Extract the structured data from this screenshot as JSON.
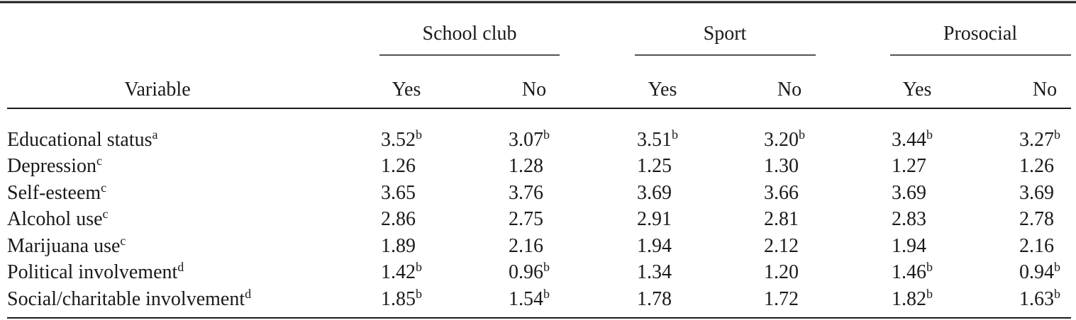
{
  "table": {
    "groups": [
      "School club",
      "Sport",
      "Prosocial"
    ],
    "variable_header": "Variable",
    "subheaders": [
      "Yes",
      "No",
      "Yes",
      "No",
      "Yes",
      "No"
    ],
    "rows": [
      {
        "label": "Educational status",
        "label_sup": "a",
        "cells": [
          {
            "text": "3.52",
            "sup": "b"
          },
          {
            "text": "3.07",
            "sup": "b"
          },
          {
            "text": "3.51",
            "sup": "b"
          },
          {
            "text": "3.20",
            "sup": "b"
          },
          {
            "text": "3.44",
            "sup": "b"
          },
          {
            "text": "3.27",
            "sup": "b"
          }
        ]
      },
      {
        "label": "Depression",
        "label_sup": "c",
        "cells": [
          {
            "text": "1.26"
          },
          {
            "text": "1.28"
          },
          {
            "text": "1.25"
          },
          {
            "text": "1.30"
          },
          {
            "text": "1.27"
          },
          {
            "text": "1.26"
          }
        ]
      },
      {
        "label": "Self-esteem",
        "label_sup": "c",
        "cells": [
          {
            "text": "3.65"
          },
          {
            "text": "3.76"
          },
          {
            "text": "3.69"
          },
          {
            "text": "3.66"
          },
          {
            "text": "3.69"
          },
          {
            "text": "3.69"
          }
        ]
      },
      {
        "label": "Alcohol use",
        "label_sup": "c",
        "cells": [
          {
            "text": "2.86"
          },
          {
            "text": "2.75"
          },
          {
            "text": "2.91"
          },
          {
            "text": "2.81"
          },
          {
            "text": "2.83"
          },
          {
            "text": "2.78"
          }
        ]
      },
      {
        "label": "Marijuana use",
        "label_sup": "c",
        "cells": [
          {
            "text": "1.89"
          },
          {
            "text": "2.16"
          },
          {
            "text": "1.94"
          },
          {
            "text": "2.12"
          },
          {
            "text": "1.94"
          },
          {
            "text": "2.16"
          }
        ]
      },
      {
        "label": "Political involvement",
        "label_sup": "d",
        "cells": [
          {
            "text": "1.42",
            "sup": "b"
          },
          {
            "text": "0.96",
            "sup": "b"
          },
          {
            "text": "1.34"
          },
          {
            "text": "1.20"
          },
          {
            "text": "1.46",
            "sup": "b"
          },
          {
            "text": "0.94",
            "sup": "b"
          }
        ]
      },
      {
        "label": "Social/charitable involvement",
        "label_sup": "d",
        "cells": [
          {
            "text": "1.85",
            "sup": "b"
          },
          {
            "text": "1.54",
            "sup": "b"
          },
          {
            "text": "1.78"
          },
          {
            "text": "1.72"
          },
          {
            "text": "1.82",
            "sup": "b"
          },
          {
            "text": "1.63",
            "sup": "b"
          }
        ]
      }
    ]
  }
}
